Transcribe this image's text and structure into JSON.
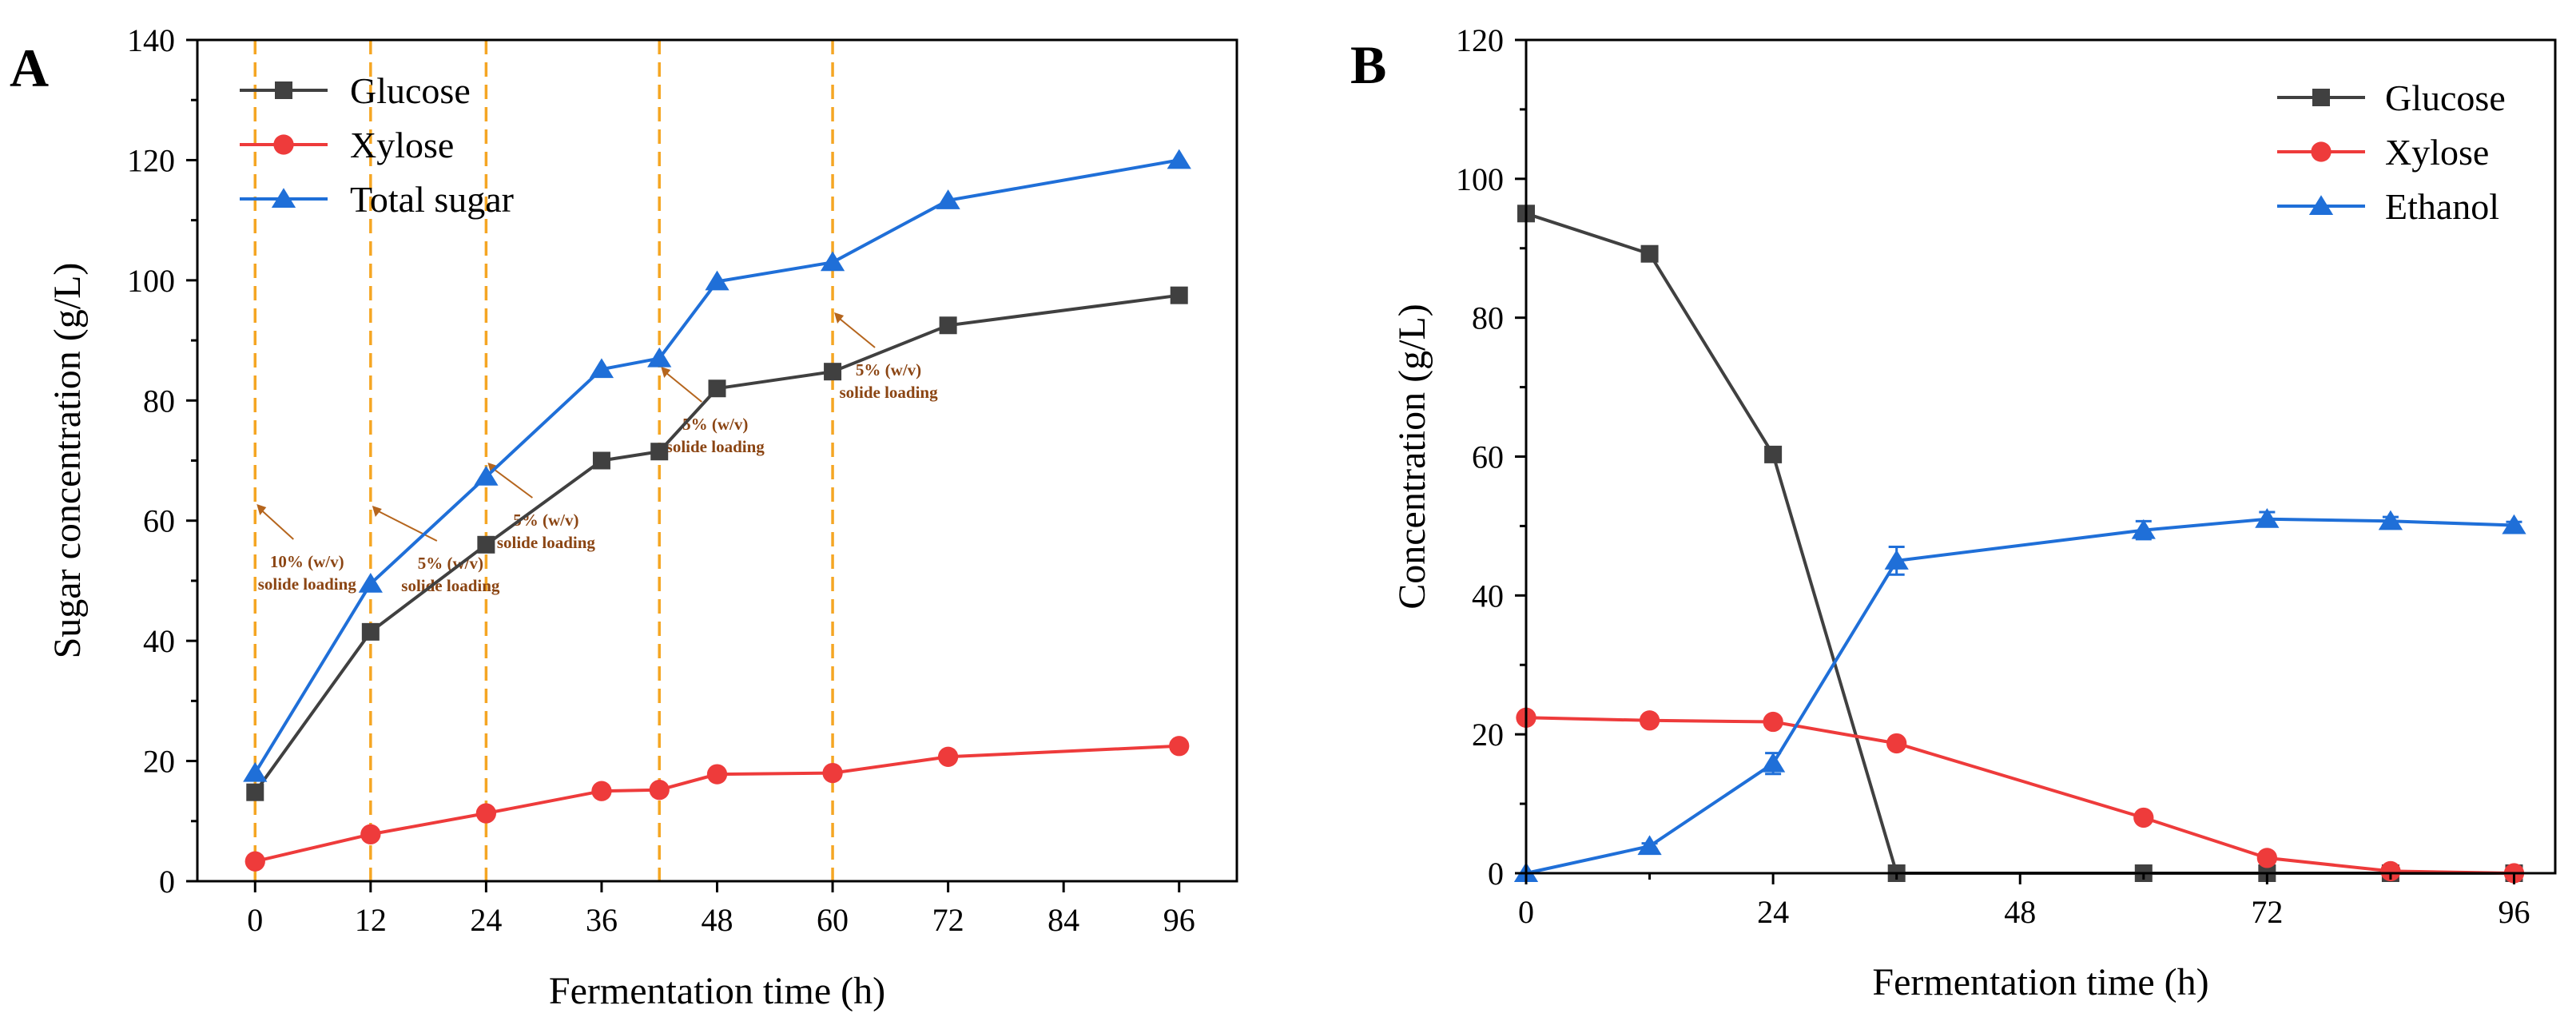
{
  "chart_data": [
    {
      "type": "line",
      "panel_label": "A",
      "xlabel": "Fermentation time (h)",
      "ylabel": "Sugar concentration (g/L)",
      "xlim": [
        -6,
        102
      ],
      "ylim": [
        0,
        140
      ],
      "xticks": [
        0,
        12,
        24,
        36,
        48,
        60,
        72,
        84,
        96
      ],
      "yticks": [
        0,
        20,
        40,
        60,
        80,
        100,
        120,
        140
      ],
      "legend_position": "top-left",
      "series": [
        {
          "name": "Glucose",
          "color": "#404040",
          "marker": "square",
          "x": [
            0,
            12,
            24,
            36,
            42,
            48,
            60,
            72,
            96
          ],
          "y": [
            14.8,
            41.5,
            56,
            70,
            71.5,
            82,
            84.8,
            92.5,
            97.5
          ]
        },
        {
          "name": "Xylose",
          "color": "#ee3b3b",
          "marker": "circle",
          "x": [
            0,
            12,
            24,
            36,
            42,
            48,
            60,
            72,
            96
          ],
          "y": [
            3.3,
            7.8,
            11.3,
            15,
            15.2,
            17.8,
            18,
            20.7,
            22.5
          ]
        },
        {
          "name": "Total sugar",
          "color": "#1f6fd8",
          "marker": "triangle",
          "x": [
            0,
            12,
            24,
            36,
            42,
            48,
            60,
            72,
            96
          ],
          "y": [
            18,
            49.5,
            67.3,
            85.2,
            87,
            99.8,
            103,
            113.3,
            120
          ]
        }
      ],
      "vlines": {
        "x": [
          0,
          12,
          24,
          42,
          60
        ],
        "color": "#f5a623"
      },
      "annotations": [
        {
          "line1": "10% (w/v)",
          "line2": "solide loading",
          "x": 0
        },
        {
          "line1": "5% (w/v)",
          "line2": "solide loading",
          "x": 12
        },
        {
          "line1": "5% (w/v)",
          "line2": "solide loading",
          "x": 24
        },
        {
          "line1": "5% (w/v)",
          "line2": "solide loading",
          "x": 42
        },
        {
          "line1": "5% (w/v)",
          "line2": "solide loading",
          "x": 60
        }
      ]
    },
    {
      "type": "line",
      "panel_label": "B",
      "xlabel": "Fermentation time (h)",
      "ylabel": "Concentration (g/L)",
      "xlim": [
        0,
        100
      ],
      "ylim": [
        0,
        120
      ],
      "xticks": [
        0,
        24,
        48,
        72,
        96
      ],
      "yticks": [
        0,
        20,
        40,
        60,
        80,
        100,
        120
      ],
      "legend_position": "top-right",
      "series": [
        {
          "name": "Glucose",
          "color": "#404040",
          "marker": "square",
          "x": [
            0,
            12,
            24,
            36,
            60,
            72,
            84,
            96
          ],
          "y": [
            95,
            89.2,
            60.3,
            0,
            0,
            0,
            0,
            0
          ]
        },
        {
          "name": "Xylose",
          "color": "#ee3b3b",
          "marker": "circle",
          "x": [
            0,
            12,
            24,
            36,
            60,
            72,
            84,
            96
          ],
          "y": [
            22.4,
            22,
            21.8,
            18.7,
            8,
            2.2,
            0.3,
            0
          ]
        },
        {
          "name": "Ethanol",
          "color": "#1f6fd8",
          "marker": "triangle",
          "x": [
            0,
            12,
            24,
            36,
            60,
            72,
            84,
            96
          ],
          "y": [
            0,
            3.9,
            15.8,
            45,
            49.4,
            51,
            50.7,
            50.1
          ],
          "err": [
            0,
            0.4,
            1.5,
            2,
            1.3,
            1,
            0.6,
            0.5
          ]
        }
      ]
    }
  ]
}
